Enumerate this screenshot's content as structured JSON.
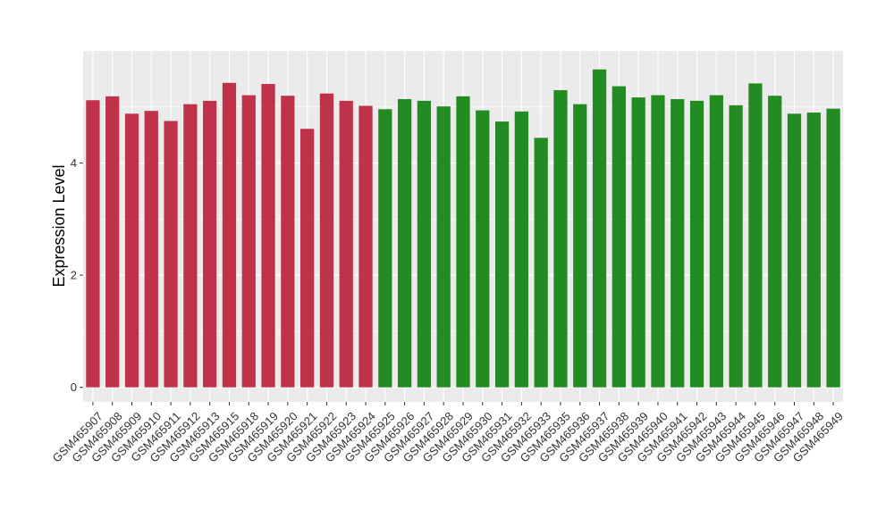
{
  "chart_data": {
    "type": "bar",
    "title": "",
    "xlabel": "",
    "ylabel": "Expression Level",
    "ylim": [
      -0.26,
      6.0
    ],
    "yticks": [
      0,
      2,
      4
    ],
    "grid": true,
    "legend": "none",
    "categories": [
      "GSM465907",
      "GSM465908",
      "GSM465909",
      "GSM465910",
      "GSM465911",
      "GSM465912",
      "GSM465913",
      "GSM465915",
      "GSM465918",
      "GSM465919",
      "GSM465920",
      "GSM465921",
      "GSM465922",
      "GSM465923",
      "GSM465924",
      "GSM465925",
      "GSM465926",
      "GSM465927",
      "GSM465928",
      "GSM465929",
      "GSM465930",
      "GSM465931",
      "GSM465932",
      "GSM465933",
      "GSM465935",
      "GSM465936",
      "GSM465937",
      "GSM465938",
      "GSM465939",
      "GSM465940",
      "GSM465941",
      "GSM465942",
      "GSM465943",
      "GSM465944",
      "GSM465945",
      "GSM465946",
      "GSM465947",
      "GSM465948",
      "GSM465949"
    ],
    "values": [
      5.12,
      5.19,
      4.88,
      4.93,
      4.75,
      5.05,
      5.11,
      5.43,
      5.21,
      5.41,
      5.2,
      4.61,
      5.24,
      5.11,
      5.02,
      4.96,
      5.14,
      5.11,
      5.01,
      5.19,
      4.94,
      4.74,
      4.92,
      4.45,
      5.3,
      5.05,
      5.67,
      5.37,
      5.17,
      5.21,
      5.14,
      5.11,
      5.21,
      5.03,
      5.42,
      5.2,
      4.88,
      4.9,
      4.97
    ],
    "colors": [
      "#c0314a",
      "#c0314a",
      "#c0314a",
      "#c0314a",
      "#c0314a",
      "#c0314a",
      "#c0314a",
      "#c0314a",
      "#c0314a",
      "#c0314a",
      "#c0314a",
      "#c0314a",
      "#c0314a",
      "#c0314a",
      "#c0314a",
      "#228b22",
      "#228b22",
      "#228b22",
      "#228b22",
      "#228b22",
      "#228b22",
      "#228b22",
      "#228b22",
      "#228b22",
      "#228b22",
      "#228b22",
      "#228b22",
      "#228b22",
      "#228b22",
      "#228b22",
      "#228b22",
      "#228b22",
      "#228b22",
      "#228b22",
      "#228b22",
      "#228b22",
      "#228b22",
      "#228b22",
      "#228b22"
    ],
    "panel_background": "#ebebeb",
    "grid_color": "#ffffff"
  }
}
